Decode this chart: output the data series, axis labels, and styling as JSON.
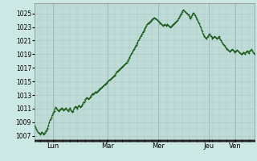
{
  "background_color": "#cce8e4",
  "plot_bg_color": "#cce8e4",
  "grid_color": "#a8c8c4",
  "line_color": "#1a5c1a",
  "marker_color": "#1a5c1a",
  "ylim": [
    1006.5,
    1026.5
  ],
  "yticks": [
    1007,
    1009,
    1011,
    1013,
    1015,
    1017,
    1019,
    1021,
    1023,
    1025
  ],
  "day_labels": [
    "Lun",
    "Mar",
    "Mer",
    "Jeu",
    "Ven"
  ],
  "day_positions": [
    0.083,
    0.333,
    0.563,
    0.793,
    0.913
  ],
  "pressure_data": [
    1008.5,
    1008.3,
    1008.0,
    1007.8,
    1007.6,
    1007.5,
    1007.4,
    1007.3,
    1007.2,
    1007.4,
    1007.6,
    1007.4,
    1007.2,
    1007.3,
    1007.5,
    1007.7,
    1007.8,
    1008.0,
    1008.2,
    1008.5,
    1009.0,
    1009.3,
    1009.5,
    1009.7,
    1010.0,
    1010.3,
    1010.5,
    1010.7,
    1011.0,
    1011.2,
    1011.1,
    1010.9,
    1010.8,
    1010.7,
    1010.8,
    1010.9,
    1011.0,
    1011.1,
    1011.0,
    1010.9,
    1010.8,
    1010.9,
    1011.0,
    1011.1,
    1010.9,
    1010.8,
    1010.7,
    1010.9,
    1011.0,
    1011.1,
    1010.8,
    1010.6,
    1010.5,
    1010.7,
    1011.0,
    1011.2,
    1011.3,
    1011.2,
    1011.0,
    1011.1,
    1011.3,
    1011.5,
    1011.4,
    1011.2,
    1011.3,
    1011.5,
    1011.7,
    1011.9,
    1012.0,
    1012.2,
    1012.4,
    1012.5,
    1012.6,
    1012.5,
    1012.4,
    1012.5,
    1012.6,
    1012.8,
    1013.0,
    1013.1,
    1013.2,
    1013.1,
    1013.3,
    1013.4,
    1013.5,
    1013.4,
    1013.5,
    1013.6,
    1013.7,
    1013.8,
    1013.9,
    1014.0,
    1014.1,
    1014.2,
    1014.3,
    1014.4,
    1014.5,
    1014.6,
    1014.7,
    1014.8,
    1014.9,
    1015.0,
    1015.1,
    1015.2,
    1015.3,
    1015.4,
    1015.5,
    1015.6,
    1015.7,
    1015.8,
    1015.9,
    1016.0,
    1016.2,
    1016.4,
    1016.5,
    1016.6,
    1016.7,
    1016.8,
    1016.9,
    1017.0,
    1017.1,
    1017.2,
    1017.3,
    1017.4,
    1017.5,
    1017.6,
    1017.7,
    1017.8,
    1018.0,
    1018.2,
    1018.4,
    1018.6,
    1018.8,
    1019.0,
    1019.2,
    1019.4,
    1019.6,
    1019.8,
    1020.0,
    1020.2,
    1020.4,
    1020.6,
    1020.8,
    1021.0,
    1021.2,
    1021.4,
    1021.6,
    1021.8,
    1022.0,
    1022.2,
    1022.4,
    1022.6,
    1022.8,
    1023.0,
    1023.2,
    1023.4,
    1023.5,
    1023.6,
    1023.7,
    1023.8,
    1023.9,
    1024.0,
    1024.1,
    1024.2,
    1024.3,
    1024.4,
    1024.3,
    1024.2,
    1024.1,
    1024.0,
    1023.9,
    1023.8,
    1023.7,
    1023.6,
    1023.5,
    1023.4,
    1023.3,
    1023.2,
    1023.3,
    1023.4,
    1023.3,
    1023.2,
    1023.3,
    1023.4,
    1023.3,
    1023.2,
    1023.1,
    1023.0,
    1023.1,
    1023.2,
    1023.3,
    1023.4,
    1023.5,
    1023.6,
    1023.7,
    1023.8,
    1023.9,
    1024.0,
    1024.2,
    1024.4,
    1024.6,
    1024.8,
    1025.0,
    1025.2,
    1025.4,
    1025.5,
    1025.4,
    1025.3,
    1025.2,
    1025.1,
    1025.0,
    1024.9,
    1024.8,
    1024.6,
    1024.4,
    1024.2,
    1024.5,
    1024.7,
    1025.0,
    1025.1,
    1024.9,
    1024.7,
    1024.5,
    1024.3,
    1024.1,
    1023.9,
    1023.7,
    1023.5,
    1023.2,
    1022.9,
    1022.6,
    1022.3,
    1022.0,
    1021.8,
    1021.6,
    1021.5,
    1021.4,
    1021.3,
    1021.5,
    1021.7,
    1021.9,
    1022.0,
    1021.8,
    1021.6,
    1021.5,
    1021.3,
    1021.4,
    1021.5,
    1021.6,
    1021.5,
    1021.4,
    1021.3,
    1021.4,
    1021.5,
    1021.6,
    1021.4,
    1021.2,
    1021.0,
    1020.8,
    1020.6,
    1020.5,
    1020.3,
    1020.2,
    1020.0,
    1019.9,
    1019.8,
    1019.7,
    1019.6,
    1019.5,
    1019.4,
    1019.5,
    1019.6,
    1019.7,
    1019.6,
    1019.5,
    1019.4,
    1019.3,
    1019.4,
    1019.5,
    1019.6,
    1019.5,
    1019.4,
    1019.3,
    1019.2,
    1019.1,
    1019.0,
    1019.1,
    1019.2,
    1019.3,
    1019.2,
    1019.1,
    1019.3,
    1019.4,
    1019.5,
    1019.3,
    1019.2,
    1019.4,
    1019.5,
    1019.6,
    1019.7,
    1019.5,
    1019.3,
    1019.2,
    1019.1
  ]
}
